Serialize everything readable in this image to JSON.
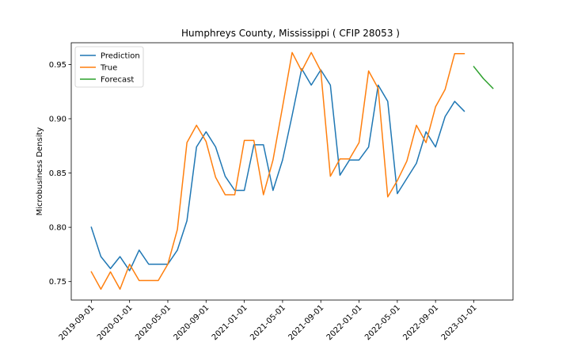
{
  "chart_data": {
    "type": "line",
    "title": "Humphreys County, Mississippi ( CFIP 28053 )",
    "xlabel": "",
    "ylabel": "Microbusiness Density",
    "ylim": [
      0.733,
      0.97
    ],
    "yticks": [
      0.75,
      0.8,
      0.85,
      0.9,
      0.95
    ],
    "ytick_labels": [
      "0.75",
      "0.80",
      "0.85",
      "0.90",
      "0.95"
    ],
    "xlim": [
      -2.1,
      44.1
    ],
    "xticks": [
      0,
      4,
      8,
      12,
      16,
      20,
      24,
      28,
      32,
      36,
      40
    ],
    "xtick_labels": [
      "2019-09-01",
      "2020-01-01",
      "2020-05-01",
      "2020-09-01",
      "2021-01-01",
      "2021-05-01",
      "2021-09-01",
      "2022-01-01",
      "2022-05-01",
      "2022-09-01",
      "2023-01-01"
    ],
    "legend_position": "top-left",
    "series": [
      {
        "name": "Prediction",
        "color": "#1f77b4",
        "x": [
          0,
          1,
          2,
          3,
          4,
          5,
          6,
          7,
          8,
          9,
          10,
          11,
          12,
          13,
          14,
          15,
          16,
          17,
          18,
          19,
          20,
          21,
          22,
          23,
          24,
          25,
          26,
          27,
          28,
          29,
          30,
          31,
          32,
          33,
          34,
          35,
          36,
          37,
          38,
          39
        ],
        "values": [
          0.8,
          0.773,
          0.762,
          0.773,
          0.76,
          0.779,
          0.766,
          0.766,
          0.766,
          0.779,
          0.806,
          0.874,
          0.888,
          0.874,
          0.847,
          0.834,
          0.834,
          0.876,
          0.876,
          0.834,
          0.862,
          0.903,
          0.946,
          0.931,
          0.945,
          0.931,
          0.848,
          0.862,
          0.862,
          0.874,
          0.931,
          0.916,
          0.831,
          0.845,
          0.859,
          0.888,
          0.874,
          0.902,
          0.916,
          0.907
        ]
      },
      {
        "name": "True",
        "color": "#ff7f0e",
        "x": [
          0,
          1,
          2,
          3,
          4,
          5,
          6,
          7,
          8,
          9,
          10,
          11,
          12,
          13,
          14,
          15,
          16,
          17,
          18,
          19,
          20,
          21,
          22,
          23,
          24,
          25,
          26,
          27,
          28,
          29,
          30,
          31,
          32,
          33,
          34,
          35,
          36,
          37,
          38,
          39
        ],
        "values": [
          0.759,
          0.743,
          0.759,
          0.743,
          0.766,
          0.751,
          0.751,
          0.751,
          0.766,
          0.798,
          0.878,
          0.894,
          0.879,
          0.846,
          0.83,
          0.83,
          0.88,
          0.88,
          0.83,
          0.862,
          0.911,
          0.961,
          0.944,
          0.961,
          0.944,
          0.847,
          0.863,
          0.863,
          0.878,
          0.944,
          0.928,
          0.828,
          0.843,
          0.861,
          0.894,
          0.878,
          0.911,
          0.927,
          0.96,
          0.96
        ]
      },
      {
        "name": "Forecast",
        "color": "#2ca02c",
        "x": [
          40,
          41,
          42
        ],
        "values": [
          0.948,
          0.937,
          0.928
        ]
      }
    ]
  }
}
